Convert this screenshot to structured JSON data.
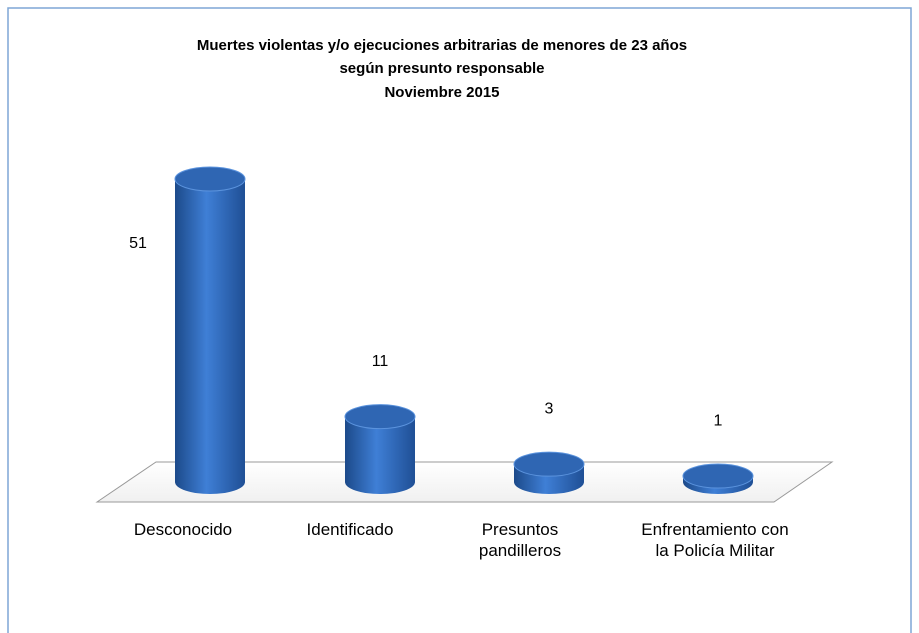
{
  "chart_data": {
    "type": "bar3d",
    "title": [
      "Muertes violentas y/o ejecuciones arbitrarias de menores de 23 años",
      "según presunto responsable",
      "Noviembre 2015"
    ],
    "categories": [
      "Desconocido",
      "Identificado",
      "Presuntos pandilleros",
      "Enfrentamiento con la Policía Militar"
    ],
    "values": [
      51,
      11,
      3,
      1
    ],
    "color": "#2f66b3"
  }
}
